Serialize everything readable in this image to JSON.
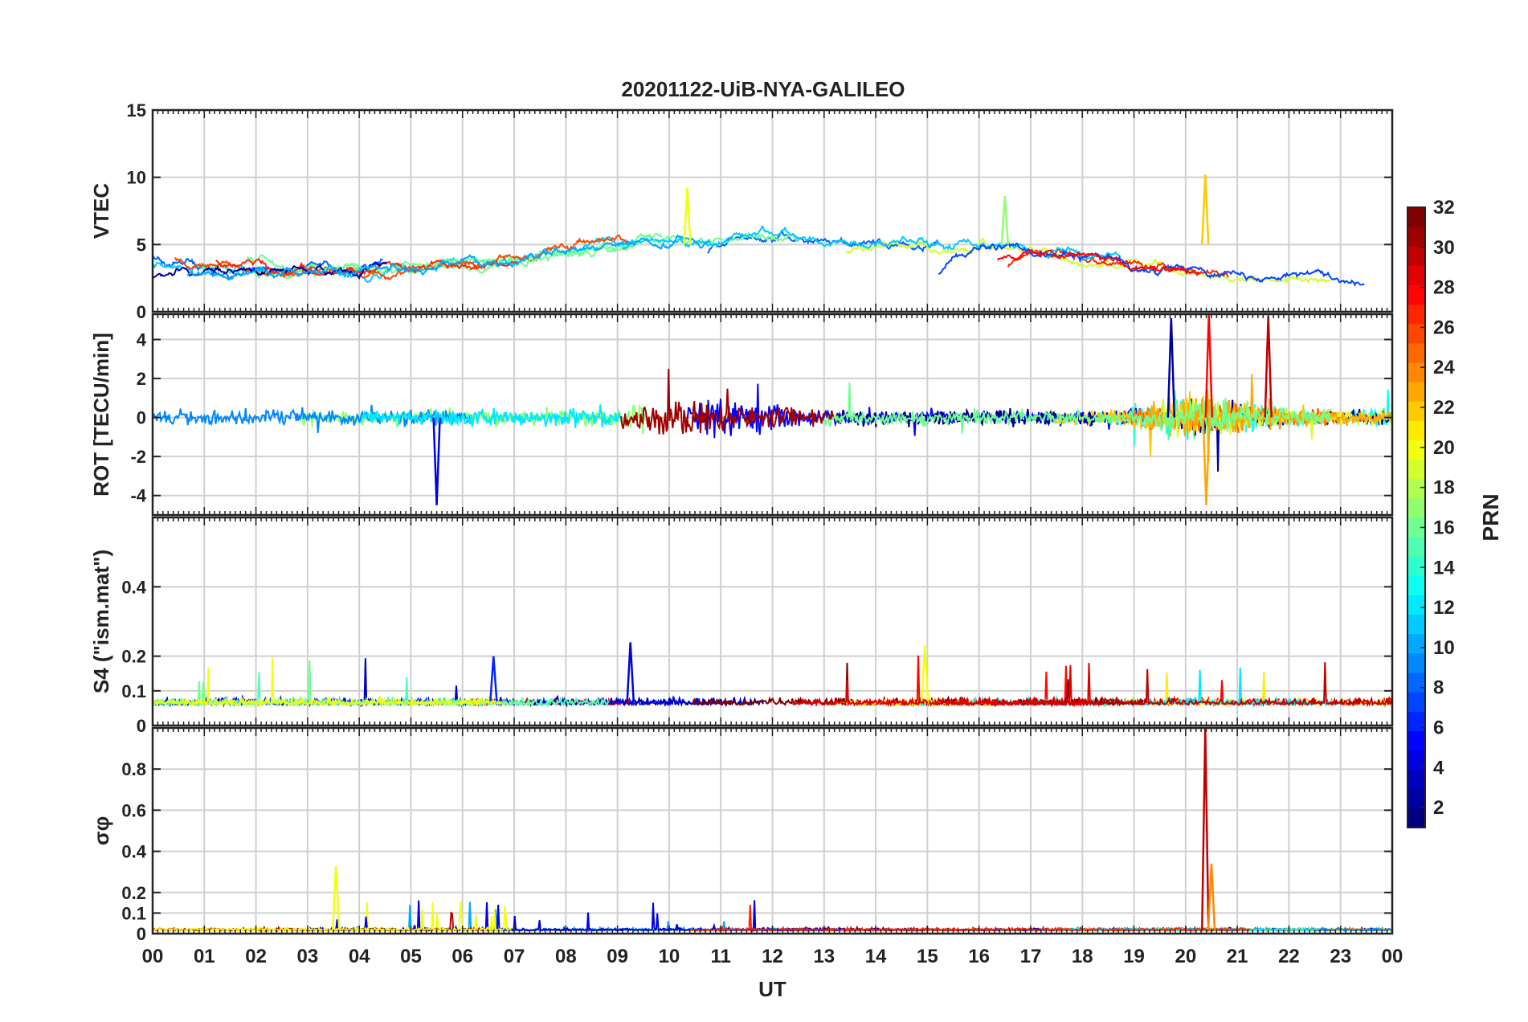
{
  "title": "20201122-UiB-NYA-GALILEO",
  "x_axis": {
    "label": "UT",
    "ticks": [
      "00",
      "01",
      "02",
      "03",
      "04",
      "05",
      "06",
      "07",
      "08",
      "09",
      "10",
      "11",
      "12",
      "13",
      "14",
      "15",
      "16",
      "17",
      "18",
      "19",
      "20",
      "21",
      "22",
      "23",
      "00"
    ]
  },
  "colorbar": {
    "label": "PRN",
    "ticks": [
      "2",
      "4",
      "6",
      "8",
      "10",
      "12",
      "14",
      "16",
      "18",
      "20",
      "22",
      "24",
      "26",
      "28",
      "30",
      "32"
    ],
    "colormap": "jet",
    "range": [
      1,
      32
    ]
  },
  "chart_data": [
    {
      "type": "line",
      "id": "vtec",
      "ylabel": "VTEC",
      "ylim": [
        0,
        15
      ],
      "yticks": [
        0,
        5,
        10,
        15
      ],
      "xlim_hours": [
        0,
        24
      ],
      "series_description": "GALILEO PRN 1-32, baseline ~3-6 with daytime maxima ~7-9 and a peak ~10 near 20.4 UT"
    },
    {
      "type": "line",
      "id": "rot",
      "ylabel": "ROT [TECU/min]",
      "ylim": [
        -5,
        5.3
      ],
      "yticks": [
        -4,
        -2,
        0,
        2,
        4
      ],
      "xlim_hours": [
        0,
        24
      ],
      "series_description": "fluctuations within about ±1, spikes to ±4.5 near 5.5 UT and 19.7-21.6 UT"
    },
    {
      "type": "line",
      "id": "s4",
      "ylabel": "S4 (\"ism.mat\")",
      "ylim": [
        0,
        0.6
      ],
      "yticks": [
        0,
        0.1,
        0.2,
        0.4
      ],
      "xlim_hours": [
        0,
        24
      ],
      "series_description": "baseline ~0.05-0.1, peaks ~0.2-0.24 near 9.2 and 15 UT"
    },
    {
      "type": "line",
      "id": "sigma_phi",
      "ylabel": "σφ",
      "ylim": [
        0,
        1
      ],
      "yticks": [
        0,
        0.1,
        0.2,
        0.4,
        0.6,
        0.8
      ],
      "xlim_hours": [
        0,
        24
      ],
      "series_description": "baseline ~0.02, bursts 0.1-0.3 between 3.5 and 11.6 UT, peak ~1.0 near 20.4 UT"
    }
  ]
}
